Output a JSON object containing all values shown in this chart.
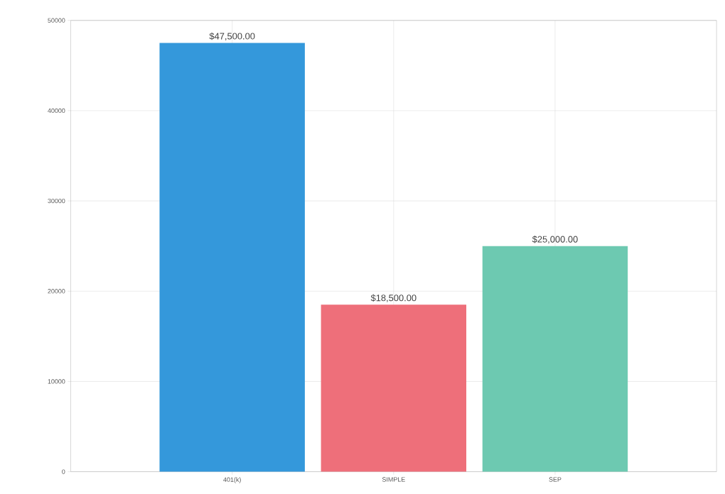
{
  "chart_data": {
    "type": "bar",
    "categories": [
      "401(k)",
      "SIMPLE",
      "SEP"
    ],
    "values": [
      47500,
      18500,
      25000
    ],
    "colors": [
      "#3498db",
      "#ee6f7a",
      "#6dc9b1"
    ],
    "value_labels": [
      "$47,500.00",
      "$18,500.00",
      "$25,000.00"
    ],
    "ylim": [
      0,
      50000
    ],
    "yticks": [
      0,
      10000,
      20000,
      30000,
      40000,
      50000
    ],
    "grid": true
  }
}
